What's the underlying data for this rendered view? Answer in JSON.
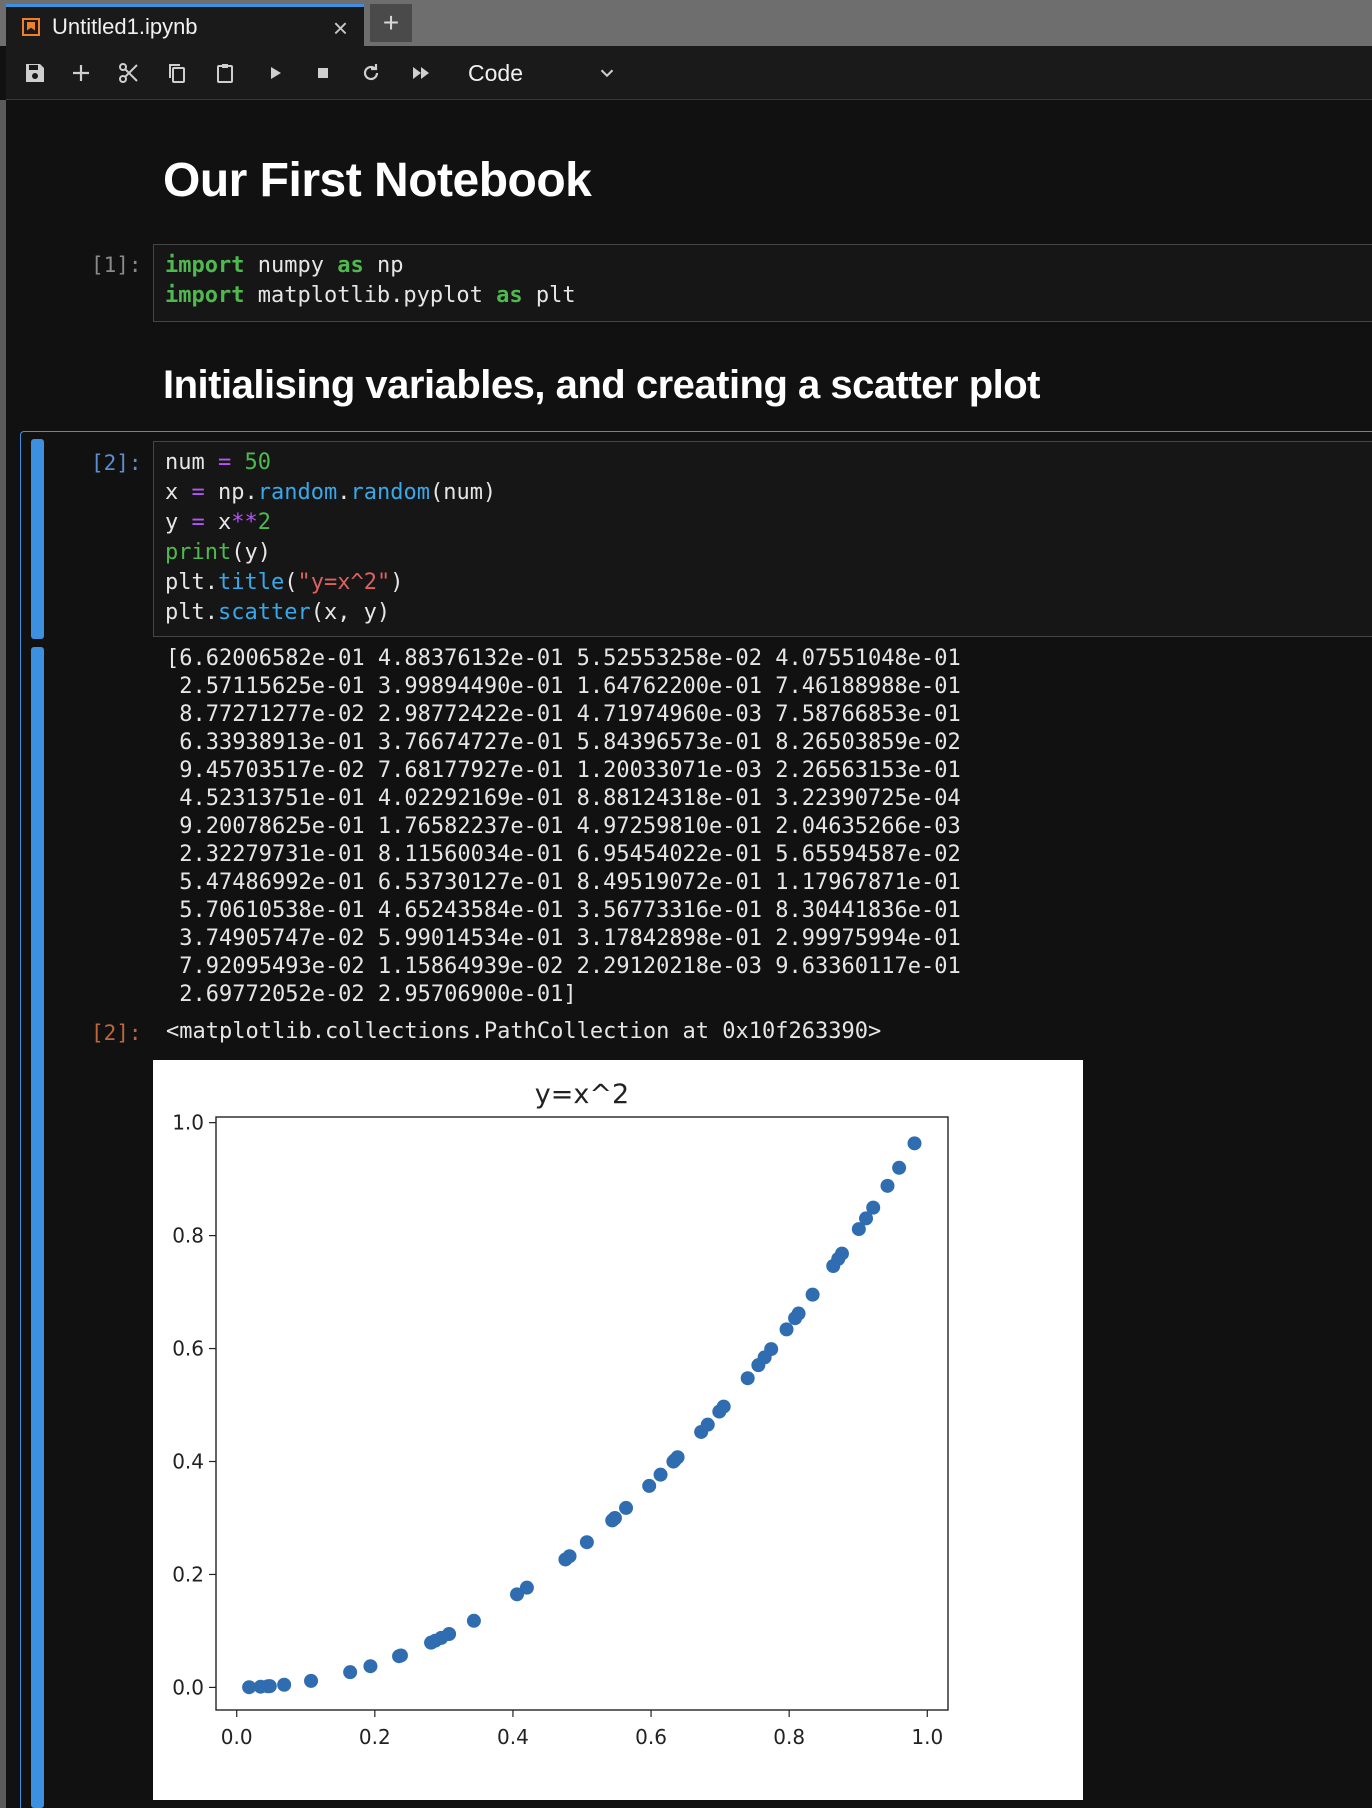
{
  "tab": {
    "title": "Untitled1.ipynb",
    "close": "×",
    "add": "+"
  },
  "toolbar": {
    "cell_type": "Code"
  },
  "notebook": {
    "heading1": "Our First Notebook",
    "heading2": "Initialising variables, and creating a scatter plot",
    "cell1": {
      "prompt": "[1]:",
      "lines": [
        [
          [
            "kw",
            "import"
          ],
          [
            "t",
            " numpy "
          ],
          [
            "kw",
            "as"
          ],
          [
            "t",
            " np"
          ]
        ],
        [
          [
            "kw",
            "import"
          ],
          [
            "t",
            " matplotlib.pyplot "
          ],
          [
            "kw",
            "as"
          ],
          [
            "t",
            " plt"
          ]
        ]
      ]
    },
    "cell2": {
      "prompt": "[2]:",
      "out_prompt": "[2]:",
      "lines": [
        [
          [
            "t",
            "num "
          ],
          [
            "op",
            "="
          ],
          [
            "t",
            " "
          ],
          [
            "num",
            "50"
          ]
        ],
        [
          [
            "t",
            "x "
          ],
          [
            "op",
            "="
          ],
          [
            "t",
            " np."
          ],
          [
            "fn",
            "random"
          ],
          [
            "t",
            "."
          ],
          [
            "fn",
            "random"
          ],
          [
            "t",
            "(num)"
          ]
        ],
        [
          [
            "t",
            "y "
          ],
          [
            "op",
            "="
          ],
          [
            "t",
            " x"
          ],
          [
            "op",
            "**"
          ],
          [
            "num",
            "2"
          ]
        ],
        [
          [
            "builtin",
            "print"
          ],
          [
            "t",
            "(y)"
          ]
        ],
        [
          [
            "t",
            "plt."
          ],
          [
            "fn",
            "title"
          ],
          [
            "t",
            "("
          ],
          [
            "str",
            "\"y=x^2\""
          ],
          [
            "t",
            ")"
          ]
        ],
        [
          [
            "t",
            "plt."
          ],
          [
            "fn",
            "scatter"
          ],
          [
            "t",
            "(x, y)"
          ]
        ]
      ],
      "stdout": "[6.62006582e-01 4.88376132e-01 5.52553258e-02 4.07551048e-01\n 2.57115625e-01 3.99894490e-01 1.64762200e-01 7.46188988e-01\n 8.77271277e-02 2.98772422e-01 4.71974960e-03 7.58766853e-01\n 6.33938913e-01 3.76674727e-01 5.84396573e-01 8.26503859e-02\n 9.45703517e-02 7.68177927e-01 1.20033071e-03 2.26563153e-01\n 4.52313751e-01 4.02292169e-01 8.88124318e-01 3.22390725e-04\n 9.20078625e-01 1.76582237e-01 4.97259810e-01 2.04635266e-03\n 2.32279731e-01 8.11560034e-01 6.95454022e-01 5.65594587e-02\n 5.47486992e-01 6.53730127e-01 8.49519072e-01 1.17967871e-01\n 5.70610538e-01 4.65243584e-01 3.56773316e-01 8.30441836e-01\n 3.74905747e-02 5.99014534e-01 3.17842898e-01 2.99975994e-01\n 7.92095493e-02 1.15864939e-02 2.29120218e-03 9.63360117e-01\n 2.69772052e-02 2.95706900e-01]",
      "repr": "<matplotlib.collections.PathCollection at 0x10f263390>"
    }
  },
  "chart_data": {
    "type": "scatter",
    "title": "y=x^2",
    "xlim": [
      -0.03,
      1.03
    ],
    "ylim": [
      -0.04,
      1.01
    ],
    "xticks": [
      0.0,
      0.2,
      0.4,
      0.6,
      0.8,
      1.0
    ],
    "yticks": [
      0.0,
      0.2,
      0.4,
      0.6,
      0.8,
      1.0
    ],
    "xtick_labels": [
      "0.0",
      "0.2",
      "0.4",
      "0.6",
      "0.8",
      "1.0"
    ],
    "ytick_labels": [
      "0.0",
      "0.2",
      "0.4",
      "0.6",
      "0.8",
      "1.0"
    ],
    "marker_color": "#2f6db0",
    "y": [
      0.662006582,
      0.488376132,
      0.0552553258,
      0.407551048,
      0.257115625,
      0.39989449,
      0.1647622,
      0.746188988,
      0.0877271277,
      0.298772422,
      0.0047197496,
      0.758766853,
      0.633938913,
      0.376674727,
      0.584396573,
      0.0826503859,
      0.0945703517,
      0.768177927,
      0.00120033071,
      0.226563153,
      0.452313751,
      0.402292169,
      0.888124318,
      0.000322390725,
      0.920078625,
      0.176582237,
      0.49725981,
      0.00204635266,
      0.232279731,
      0.811560034,
      0.695454022,
      0.0565594587,
      0.547486992,
      0.653730127,
      0.849519072,
      0.117967871,
      0.570610538,
      0.465243584,
      0.356773316,
      0.830441836,
      0.0374905747,
      0.599014534,
      0.317842898,
      0.299975994,
      0.0792095493,
      0.0115864939,
      0.00229120218,
      0.963360117,
      0.0269772052,
      0.2957069
    ]
  }
}
